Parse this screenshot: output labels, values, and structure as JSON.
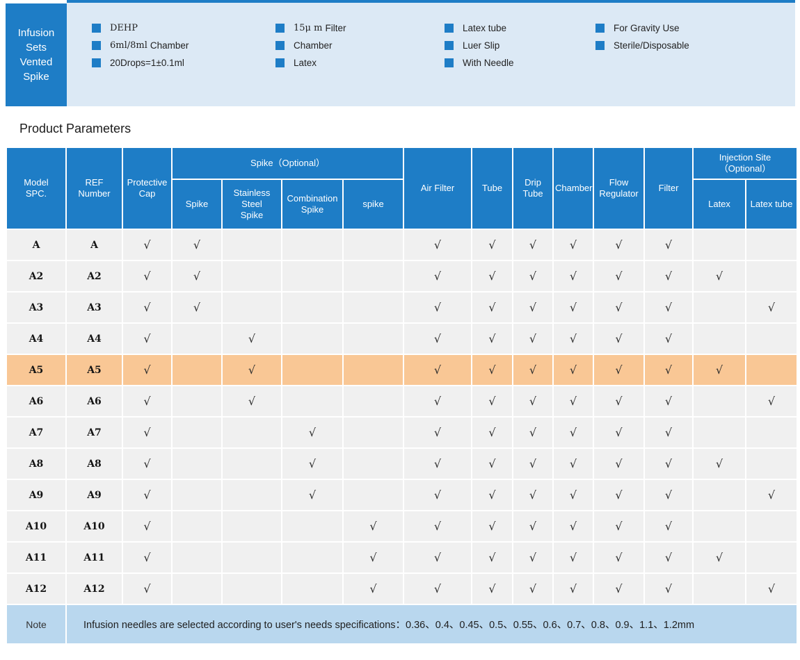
{
  "banner": {
    "title_lines": [
      "Infusion",
      "Sets",
      "Vented",
      "Spike"
    ],
    "columns": [
      {
        "items": [
          {
            "prefix": "DEHP",
            "label": ""
          },
          {
            "prefix": "6ml/8ml",
            "label": "Chamber"
          },
          {
            "prefix": "",
            "label": "20Drops=1±0.1ml"
          }
        ]
      },
      {
        "items": [
          {
            "prefix": "15μ m",
            "label": "Filter"
          },
          {
            "prefix": "",
            "label": "Chamber"
          },
          {
            "prefix": "",
            "label": "Latex"
          }
        ]
      },
      {
        "items": [
          {
            "prefix": "",
            "label": "Latex tube"
          },
          {
            "prefix": "",
            "label": "Luer Slip"
          },
          {
            "prefix": "",
            "label": "With Needle"
          }
        ]
      },
      {
        "items": [
          {
            "prefix": "",
            "label": "For Gravity Use"
          },
          {
            "prefix": "",
            "label": "Sterile/Disposable"
          }
        ]
      }
    ]
  },
  "section_title": "Product Parameters",
  "table": {
    "check_glyph": "√",
    "accent_color": "#1e7dc6",
    "highlight_color": "#f9c795",
    "header": {
      "model": "Model\nSPC.",
      "ref": "REF\nNumber",
      "protective_cap": "Protective\nCap",
      "group_spike": "Spike（Optional）",
      "spike": "Spike",
      "stainless": "Stainless\nSteel\nSpike",
      "combination": "Combination\nSpike",
      "spike2": "spike",
      "air_filter": "Air Filter",
      "tube": "Tube",
      "drip_tube": "Drip\nTube",
      "chamber": "Chamber",
      "flow_regulator": "Flow\nRegulator",
      "filter": "Filter",
      "group_injection": "Injection Site\n（Optional）",
      "latex": "Latex",
      "latex_tube": "Latex tube"
    },
    "check_columns": [
      "protective_cap",
      "spike",
      "stainless_steel_spike",
      "combination_spike",
      "spike2",
      "air_filter",
      "tube",
      "drip_tube",
      "chamber",
      "flow_regulator",
      "filter",
      "latex",
      "latex_tube"
    ],
    "rows": [
      {
        "model": "A",
        "ref": "A",
        "highlighted": false,
        "checks": [
          1,
          1,
          0,
          0,
          0,
          1,
          1,
          1,
          1,
          1,
          1,
          0,
          0
        ]
      },
      {
        "model": "A2",
        "ref": "A2",
        "highlighted": false,
        "checks": [
          1,
          1,
          0,
          0,
          0,
          1,
          1,
          1,
          1,
          1,
          1,
          1,
          0
        ]
      },
      {
        "model": "A3",
        "ref": "A3",
        "highlighted": false,
        "checks": [
          1,
          1,
          0,
          0,
          0,
          1,
          1,
          1,
          1,
          1,
          1,
          0,
          1
        ]
      },
      {
        "model": "A4",
        "ref": "A4",
        "highlighted": false,
        "checks": [
          1,
          0,
          1,
          0,
          0,
          1,
          1,
          1,
          1,
          1,
          1,
          0,
          0
        ]
      },
      {
        "model": "A5",
        "ref": "A5",
        "highlighted": true,
        "checks": [
          1,
          0,
          1,
          0,
          0,
          1,
          1,
          1,
          1,
          1,
          1,
          1,
          0
        ]
      },
      {
        "model": "A6",
        "ref": "A6",
        "highlighted": false,
        "checks": [
          1,
          0,
          1,
          0,
          0,
          1,
          1,
          1,
          1,
          1,
          1,
          0,
          1
        ]
      },
      {
        "model": "A7",
        "ref": "A7",
        "highlighted": false,
        "checks": [
          1,
          0,
          0,
          1,
          0,
          1,
          1,
          1,
          1,
          1,
          1,
          0,
          0
        ]
      },
      {
        "model": "A8",
        "ref": "A8",
        "highlighted": false,
        "checks": [
          1,
          0,
          0,
          1,
          0,
          1,
          1,
          1,
          1,
          1,
          1,
          1,
          0
        ]
      },
      {
        "model": "A9",
        "ref": "A9",
        "highlighted": false,
        "checks": [
          1,
          0,
          0,
          1,
          0,
          1,
          1,
          1,
          1,
          1,
          1,
          0,
          1
        ]
      },
      {
        "model": "A10",
        "ref": "A10",
        "highlighted": false,
        "checks": [
          1,
          0,
          0,
          0,
          1,
          1,
          1,
          1,
          1,
          1,
          1,
          0,
          0
        ]
      },
      {
        "model": "A11",
        "ref": "A11",
        "highlighted": false,
        "checks": [
          1,
          0,
          0,
          0,
          1,
          1,
          1,
          1,
          1,
          1,
          1,
          1,
          0
        ]
      },
      {
        "model": "A12",
        "ref": "A12",
        "highlighted": false,
        "checks": [
          1,
          0,
          0,
          0,
          1,
          1,
          1,
          1,
          1,
          1,
          1,
          0,
          1
        ]
      }
    ],
    "note": {
      "label": "Note",
      "text": "Infusion needles are selected according to user's needs specifications：0.36、0.4、0.45、0.5、0.55、0.6、0.7、0.8、0.9、1.1、1.2mm"
    }
  }
}
